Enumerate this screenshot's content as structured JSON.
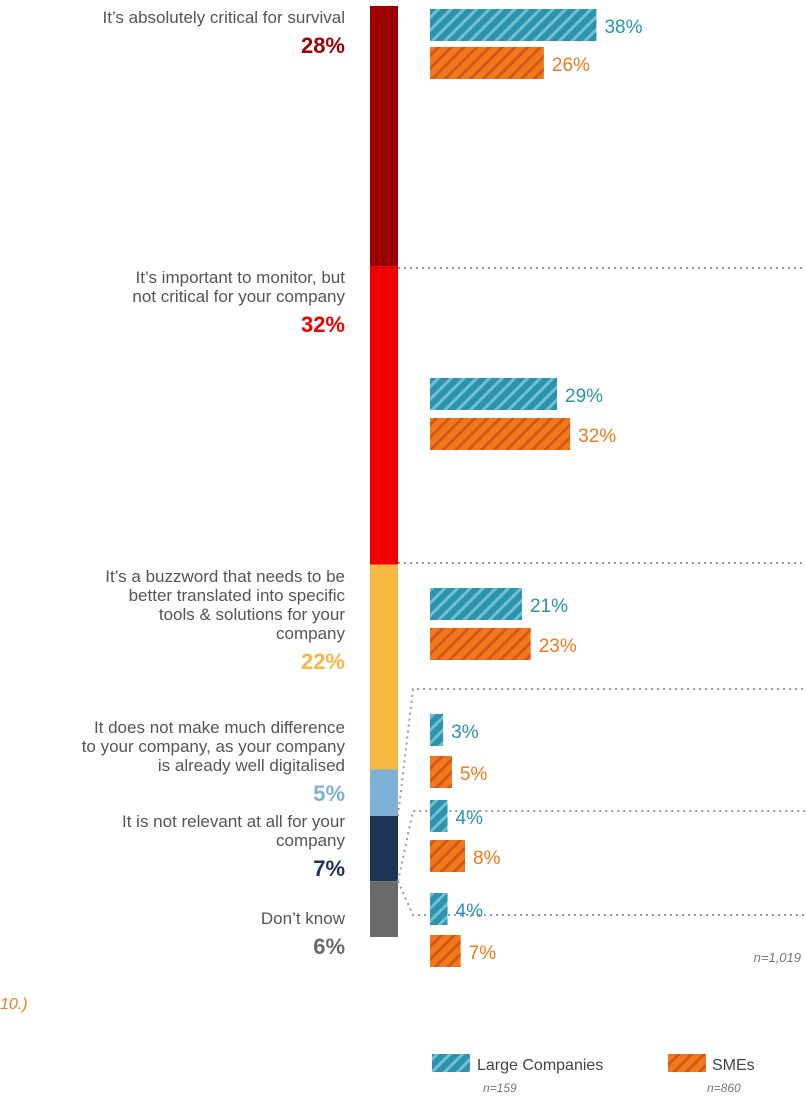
{
  "chart_data": {
    "type": "bar",
    "categories": [
      "It’s absolutely critical for survival",
      "It’s important to monitor, but not critical for your company",
      "It’s a buzzword that needs to be better translated into specific tools & solutions for your company",
      "It does not make much difference to your company, as your company is already well digitalised",
      "It is not relevant at all for your company",
      "Don’t know"
    ],
    "category_lines": [
      [
        "It’s absolutely critical for survival"
      ],
      [
        "It’s important to monitor, but",
        "not critical for your company"
      ],
      [
        "It’s a buzzword that needs to be",
        "better translated into specific",
        "tools & solutions for your",
        "company"
      ],
      [
        "It does not make much difference",
        "to your company, as your company",
        "is already well digitalised"
      ],
      [
        "It is not relevant at all for your",
        "company"
      ],
      [
        "Don’t know"
      ]
    ],
    "totals": [
      28,
      32,
      22,
      5,
      7,
      6
    ],
    "totals_labels": [
      "28%",
      "32%",
      "22%",
      "5%",
      "7%",
      "6%"
    ],
    "total_colors": [
      "#9e0000",
      "#f20000",
      "#f5b942",
      "#7fb0d6",
      "#1c3556",
      "#6a6a6a"
    ],
    "series": [
      {
        "name": "Large Companies",
        "n": "n=159",
        "color": "#2a93ad",
        "values": [
          38,
          29,
          21,
          3,
          4,
          4
        ],
        "labels": [
          "38%",
          "29%",
          "21%",
          "3%",
          "4%",
          "4%"
        ]
      },
      {
        "name": "SMEs",
        "n": "n=860",
        "color": "#f07a1a",
        "values": [
          26,
          32,
          23,
          5,
          8,
          7
        ],
        "labels": [
          "26%",
          "32%",
          "23%",
          "5%",
          "8%",
          "7%"
        ]
      }
    ],
    "total_n": "n=1,019",
    "partial_text": "10.)",
    "value_unit": "%"
  }
}
